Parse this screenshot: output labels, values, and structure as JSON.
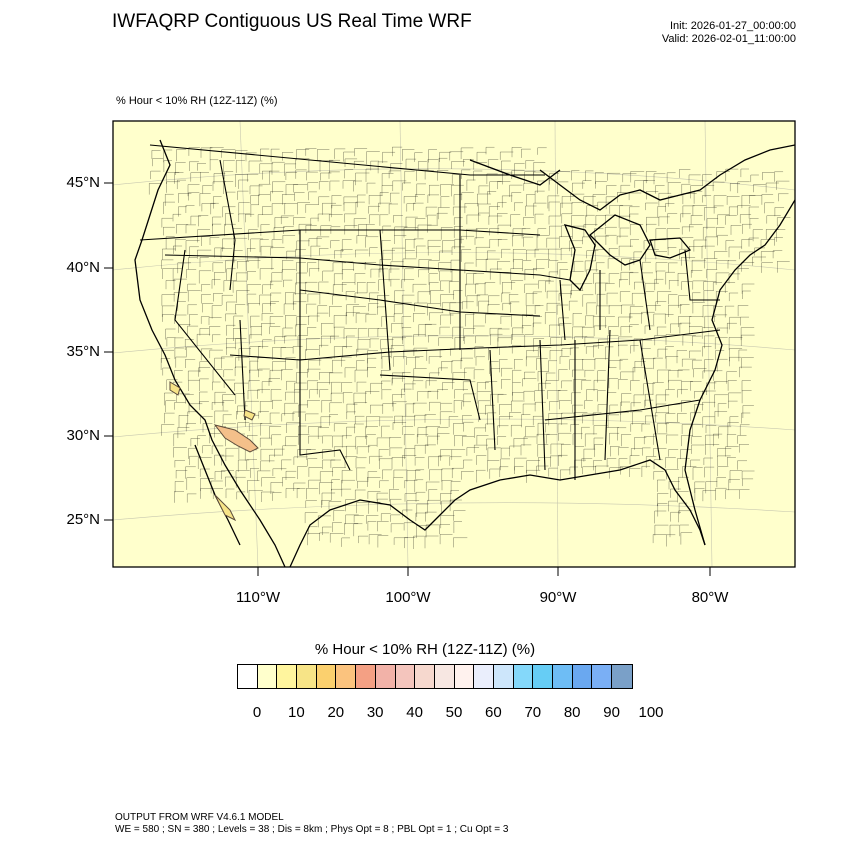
{
  "header": {
    "title": "IWFAQRP Contiguous US Real Time WRF",
    "init": "Init: 2026-01-27_00:00:00",
    "valid": "Valid: 2026-02-01_11:00:00",
    "subtitle": "% Hour < 10% RH (12Z-11Z)   (%)"
  },
  "map": {
    "lat_labels": [
      "45°N",
      "40°N",
      "35°N",
      "30°N",
      "25°N"
    ],
    "lon_labels": [
      "110°W",
      "100°W",
      "90°W",
      "80°W"
    ],
    "land_color": "#ffffcc",
    "highlight_color": "#f4c08a"
  },
  "colorbar": {
    "title": "% Hour < 10% RH (12Z-11Z)  (%)",
    "labels": [
      "0",
      "10",
      "20",
      "30",
      "40",
      "50",
      "60",
      "70",
      "80",
      "90",
      "100"
    ],
    "colors": [
      "#ffffff",
      "#ffffcc",
      "#fff59e",
      "#f7e487",
      "#fbd06e",
      "#fbc37e",
      "#f4a084",
      "#f2b2a8",
      "#f4c5bd",
      "#f6d8ce",
      "#f7e7e2",
      "#fff2ee",
      "#eaeefc",
      "#cde6fb",
      "#84d8fa",
      "#66cdf5",
      "#6ebdf5",
      "#6aa8f0",
      "#7aaff5",
      "#7aa0c8"
    ]
  },
  "footer": {
    "line1": "OUTPUT FROM WRF V4.6.1 MODEL",
    "line2": "WE = 580 ; SN = 380 ; Levels = 38 ; Dis = 8km ; Phys Opt = 8 ; PBL Opt = 1 ; Cu Opt = 3"
  }
}
